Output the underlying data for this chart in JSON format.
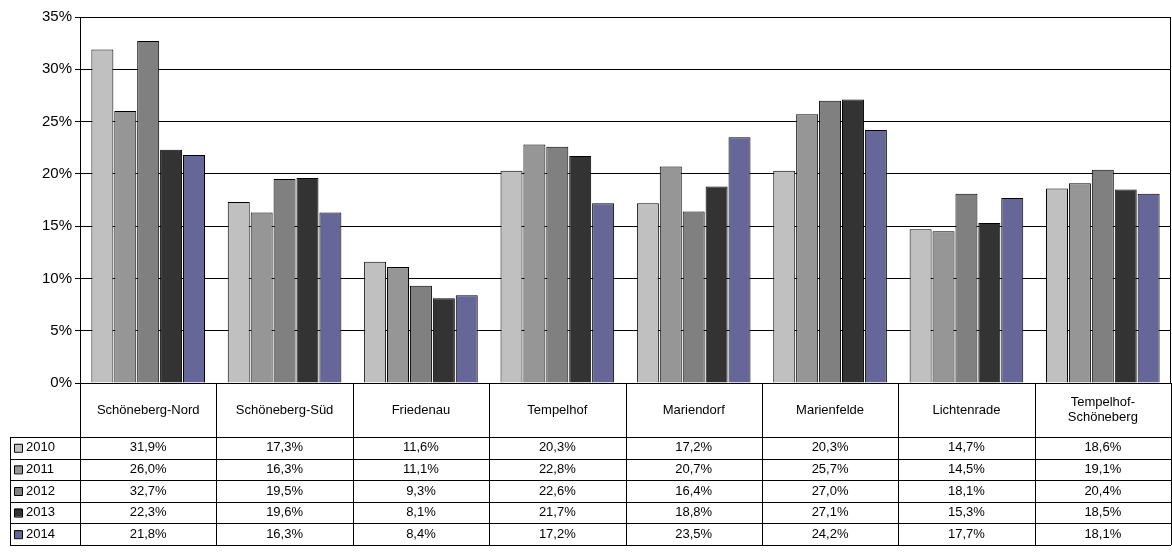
{
  "chart_data": {
    "type": "bar",
    "categories": [
      "Schöneberg-Nord",
      "Schöneberg-Süd",
      "Friedenau",
      "Tempelhof",
      "Mariendorf",
      "Marienfelde",
      "Lichtenrade",
      "Tempelhof-Schöneberg"
    ],
    "series": [
      {
        "name": "2010",
        "color": "#c0c0c0",
        "values": [
          31.9,
          17.3,
          11.6,
          20.3,
          17.2,
          20.3,
          14.7,
          18.6
        ],
        "value_labels": [
          "31,9%",
          "17,3%",
          "11,6%",
          "20,3%",
          "17,2%",
          "20,3%",
          "14,7%",
          "18,6%"
        ]
      },
      {
        "name": "2011",
        "color": "#969696",
        "values": [
          26.0,
          16.3,
          11.1,
          22.8,
          20.7,
          25.7,
          14.5,
          19.1
        ],
        "value_labels": [
          "26,0%",
          "16,3%",
          "11,1%",
          "22,8%",
          "20,7%",
          "25,7%",
          "14,5%",
          "19,1%"
        ]
      },
      {
        "name": "2012",
        "color": "#808080",
        "values": [
          32.7,
          19.5,
          9.3,
          22.6,
          16.4,
          27.0,
          18.1,
          20.4
        ],
        "value_labels": [
          "32,7%",
          "19,5%",
          "9,3%",
          "22,6%",
          "16,4%",
          "27,0%",
          "18,1%",
          "20,4%"
        ]
      },
      {
        "name": "2013",
        "color": "#333333",
        "values": [
          22.3,
          19.6,
          8.1,
          21.7,
          18.8,
          27.1,
          15.3,
          18.5
        ],
        "value_labels": [
          "22,3%",
          "19,6%",
          "8,1%",
          "21,7%",
          "18,8%",
          "27,1%",
          "15,3%",
          "18,5%"
        ]
      },
      {
        "name": "2014",
        "color": "#666699",
        "values": [
          21.8,
          16.3,
          8.4,
          17.2,
          23.5,
          24.2,
          17.7,
          18.1
        ],
        "value_labels": [
          "21,8%",
          "16,3%",
          "8,4%",
          "17,2%",
          "23,5%",
          "24,2%",
          "17,7%",
          "18,1%"
        ]
      }
    ],
    "ylim": [
      0,
      35
    ],
    "yticks": [
      {
        "value": 0,
        "label": "0%"
      },
      {
        "value": 5,
        "label": "5%"
      },
      {
        "value": 10,
        "label": "10%"
      },
      {
        "value": 15,
        "label": "15%"
      },
      {
        "value": 20,
        "label": "20%"
      },
      {
        "value": 25,
        "label": "25%"
      },
      {
        "value": 30,
        "label": "30%"
      },
      {
        "value": 35,
        "label": "35%"
      }
    ],
    "grid": "y",
    "legend": "bottom left"
  }
}
